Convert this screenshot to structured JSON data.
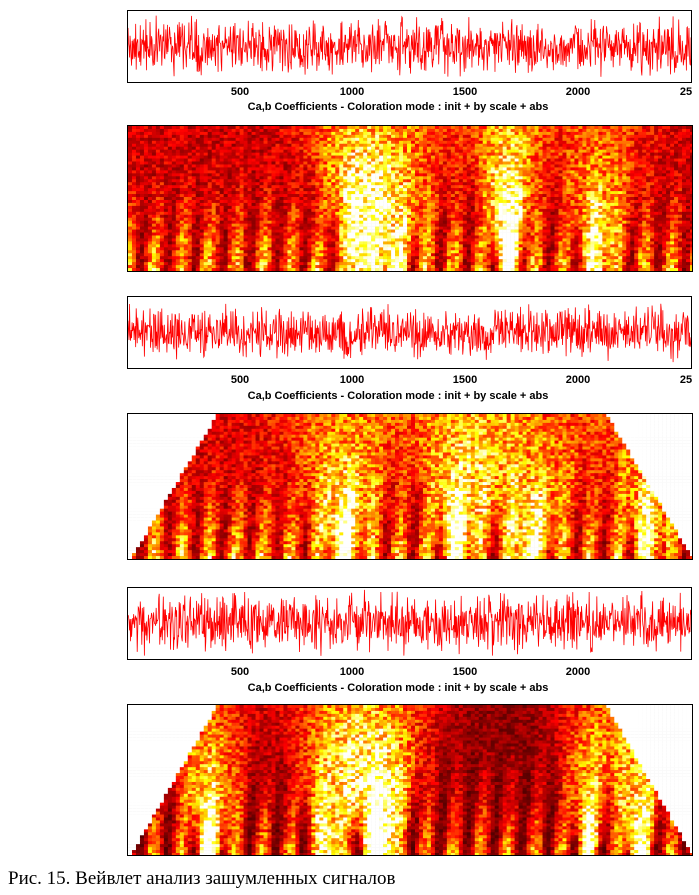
{
  "figure": {
    "caption": "Рис. 15. Вейвлет анализ зашумленных сигналов"
  },
  "chart_data": [
    {
      "type": "line",
      "series": [
        {
          "values": "noisy signal (red), roughly constant amplitude"
        }
      ],
      "x_ticks": [
        "500",
        "1000",
        "1500",
        "2000",
        "25"
      ],
      "title": "",
      "color": "#ff0000"
    },
    {
      "type": "heatmap",
      "title": "Ca,b Coefficients  - Coloration mode : init + by scale + abs",
      "colormap": "hot"
    },
    {
      "type": "line",
      "series": [
        {
          "values": "noisy signal (red), roughly constant amplitude"
        }
      ],
      "x_ticks": [
        "500",
        "1000",
        "1500",
        "2000",
        "25"
      ],
      "title": "",
      "color": "#ff0000"
    },
    {
      "type": "heatmap",
      "title": "Ca,b Coefficients  - Coloration mode : init + by scale + abs",
      "colormap": "hot"
    },
    {
      "type": "line",
      "series": [
        {
          "values": "noisy signal (red), roughly constant amplitude"
        }
      ],
      "x_ticks": [
        "500",
        "1000",
        "1500",
        "2000"
      ],
      "title": "",
      "color": "#ff0000"
    },
    {
      "type": "heatmap",
      "title": "Ca,b Coefficients  - Coloration mode : init + by scale + abs",
      "colormap": "hot"
    }
  ]
}
